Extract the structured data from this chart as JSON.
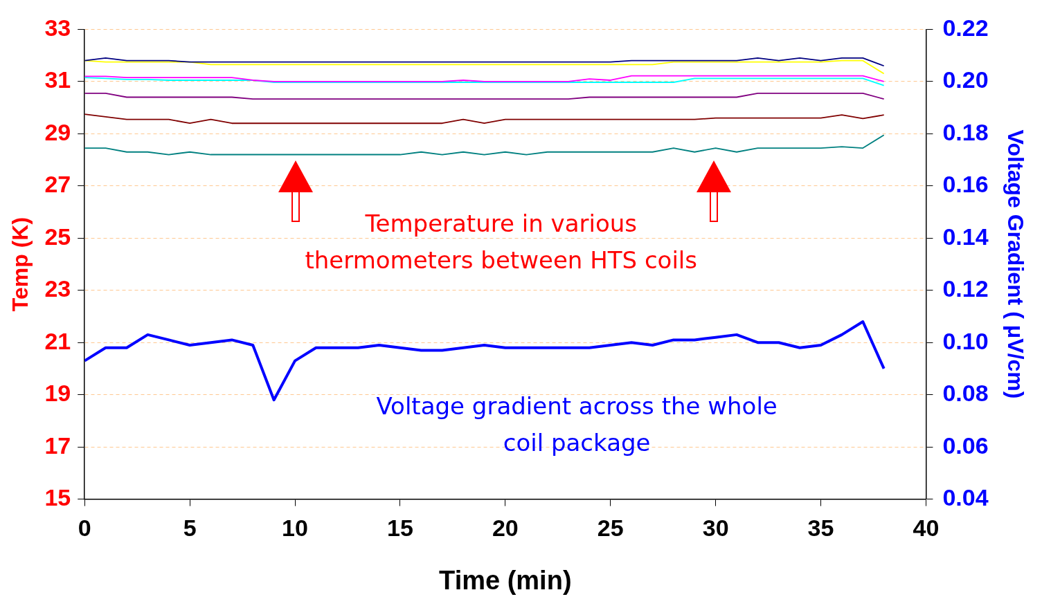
{
  "chart_data": {
    "type": "line",
    "xlabel": "Time (min)",
    "ylabel": "Temp (K)",
    "y2label": "Voltage Gradient ( μV/cm)",
    "x": [
      0,
      1,
      2,
      3,
      4,
      5,
      6,
      7,
      8,
      9,
      10,
      11,
      12,
      13,
      14,
      15,
      16,
      17,
      18,
      19,
      20,
      21,
      22,
      23,
      24,
      25,
      26,
      27,
      28,
      29,
      30,
      31,
      32,
      33,
      34,
      35,
      36,
      37,
      38
    ],
    "xlim": [
      0,
      40
    ],
    "xticks": [
      0,
      5,
      10,
      15,
      20,
      25,
      30,
      35,
      40
    ],
    "ylim": [
      15,
      33
    ],
    "yticks": [
      15,
      17,
      19,
      21,
      23,
      25,
      27,
      29,
      31,
      33
    ],
    "y2lim": [
      0.04,
      0.22
    ],
    "y2ticks": [
      0.04,
      0.06,
      0.08,
      {
        "value": 0.1,
        "label": "0.10"
      },
      0.12,
      0.14,
      0.16,
      0.18,
      {
        "value": 0.2,
        "label": "0.20"
      },
      0.22
    ],
    "grid": "y",
    "legend": false,
    "marker": "none",
    "line_style": "solid",
    "series": [
      {
        "color": "#000080",
        "values": [
          31.8,
          31.9,
          31.8,
          31.8,
          31.8,
          31.75,
          31.75,
          31.75,
          31.75,
          31.75,
          31.75,
          31.75,
          31.75,
          31.75,
          31.75,
          31.75,
          31.75,
          31.75,
          31.75,
          31.75,
          31.75,
          31.75,
          31.75,
          31.75,
          31.75,
          31.75,
          31.8,
          31.8,
          31.8,
          31.8,
          31.8,
          31.8,
          31.9,
          31.8,
          31.9,
          31.8,
          31.9,
          31.9,
          31.6
        ]
      },
      {
        "color": "#ffff00",
        "values": [
          31.8,
          31.75,
          31.75,
          31.75,
          31.75,
          31.75,
          31.65,
          31.65,
          31.65,
          31.65,
          31.65,
          31.65,
          31.65,
          31.65,
          31.65,
          31.65,
          31.65,
          31.65,
          31.65,
          31.65,
          31.65,
          31.65,
          31.65,
          31.65,
          31.65,
          31.65,
          31.65,
          31.65,
          31.75,
          31.75,
          31.75,
          31.75,
          31.75,
          31.75,
          31.75,
          31.75,
          31.8,
          31.8,
          31.3
        ]
      },
      {
        "color": "#ff00ff",
        "values": [
          31.2,
          31.2,
          31.15,
          31.15,
          31.15,
          31.15,
          31.15,
          31.15,
          31.05,
          31.0,
          31.0,
          31.0,
          31.0,
          31.0,
          31.0,
          31.0,
          31.0,
          31.0,
          31.05,
          31.0,
          31.0,
          31.0,
          31.0,
          31.0,
          31.1,
          31.05,
          31.22,
          31.22,
          31.22,
          31.22,
          31.22,
          31.22,
          31.22,
          31.22,
          31.22,
          31.22,
          31.22,
          31.22,
          31.0
        ]
      },
      {
        "color": "#00ffff",
        "values": [
          31.15,
          31.12,
          31.08,
          31.08,
          31.05,
          31.05,
          31.05,
          31.05,
          31.05,
          30.97,
          30.97,
          30.97,
          30.97,
          30.97,
          30.97,
          30.97,
          30.97,
          30.97,
          30.97,
          30.97,
          30.97,
          30.97,
          30.97,
          30.97,
          30.97,
          30.97,
          30.97,
          30.97,
          30.97,
          31.12,
          31.12,
          31.12,
          31.12,
          31.12,
          31.12,
          31.12,
          31.12,
          31.12,
          30.85
        ]
      },
      {
        "color": "#800080",
        "values": [
          30.55,
          30.55,
          30.4,
          30.4,
          30.4,
          30.4,
          30.4,
          30.4,
          30.33,
          30.33,
          30.33,
          30.33,
          30.33,
          30.33,
          30.33,
          30.33,
          30.33,
          30.33,
          30.33,
          30.33,
          30.33,
          30.33,
          30.33,
          30.33,
          30.4,
          30.4,
          30.4,
          30.4,
          30.4,
          30.4,
          30.4,
          30.4,
          30.55,
          30.55,
          30.55,
          30.55,
          30.55,
          30.55,
          30.33
        ]
      },
      {
        "color": "#800000",
        "values": [
          29.75,
          29.65,
          29.55,
          29.55,
          29.55,
          29.4,
          29.55,
          29.4,
          29.4,
          29.4,
          29.4,
          29.4,
          29.4,
          29.4,
          29.4,
          29.4,
          29.4,
          29.4,
          29.55,
          29.4,
          29.55,
          29.55,
          29.55,
          29.55,
          29.55,
          29.55,
          29.55,
          29.55,
          29.55,
          29.55,
          29.6,
          29.6,
          29.6,
          29.6,
          29.6,
          29.6,
          29.72,
          29.58,
          29.72
        ]
      },
      {
        "color": "#008080",
        "values": [
          28.45,
          28.45,
          28.3,
          28.3,
          28.2,
          28.3,
          28.2,
          28.2,
          28.2,
          28.2,
          28.2,
          28.2,
          28.2,
          28.2,
          28.2,
          28.2,
          28.3,
          28.2,
          28.3,
          28.2,
          28.3,
          28.2,
          28.3,
          28.3,
          28.3,
          28.3,
          28.3,
          28.3,
          28.45,
          28.3,
          28.45,
          28.3,
          28.45,
          28.45,
          28.45,
          28.45,
          28.5,
          28.45,
          28.95
        ]
      },
      {
        "color": "#0000ff",
        "axis": "y2",
        "values": [
          0.093,
          0.098,
          0.098,
          0.103,
          0.101,
          0.099,
          0.1,
          0.101,
          0.099,
          0.078,
          0.093,
          0.098,
          0.098,
          0.098,
          0.099,
          0.098,
          0.097,
          0.097,
          0.098,
          0.099,
          0.098,
          0.098,
          0.098,
          0.098,
          0.098,
          0.099,
          0.1,
          0.099,
          0.101,
          0.101,
          0.102,
          0.103,
          0.1,
          0.1,
          0.098,
          0.099,
          0.103,
          0.108,
          0.09
        ]
      }
    ],
    "annotations": [
      "Temperature in various\nthermometers between HTS coils",
      "Voltage gradient across the whole\ncoil package"
    ]
  }
}
